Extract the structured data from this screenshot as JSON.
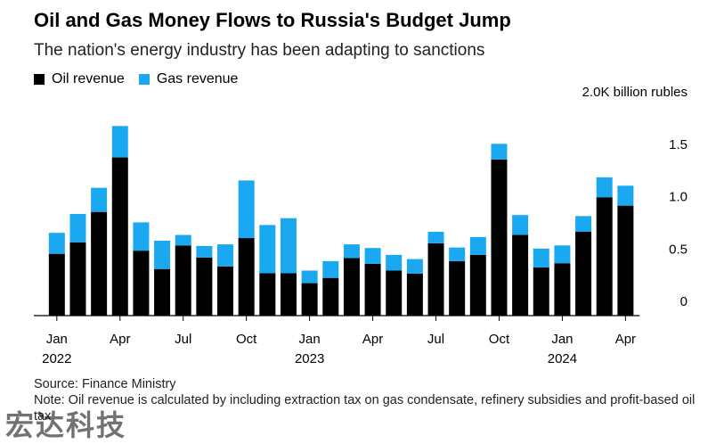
{
  "header": {
    "title": "Oil and Gas Money Flows to Russia's Budget Jump",
    "subtitle": "The nation's energy industry has been adapting to sanctions"
  },
  "footer": {
    "source": "Source: Finance Ministry",
    "note": "Note: Oil revenue is calculated by including extraction tax on gas condensate, refinery subsidies and profit-based oil tax"
  },
  "watermark": "宏达科技",
  "colors": {
    "oil": "#000000",
    "gas": "#1aa8f0",
    "axis": "#000000"
  },
  "chart_data": {
    "type": "bar",
    "stacked": true,
    "legend_position": "top-left",
    "grid": false,
    "ylim": [
      0,
      2000
    ],
    "y_unit_label": "2.0K billion rubles",
    "y_ticks": [
      {
        "value": 0,
        "label": "0"
      },
      {
        "value": 500,
        "label": "0.5"
      },
      {
        "value": 1000,
        "label": "1.0"
      },
      {
        "value": 1500,
        "label": "1.5"
      },
      {
        "value": 2000,
        "label": "2.0K billion rubles"
      }
    ],
    "categories": [
      "2022-01",
      "2022-02",
      "2022-03",
      "2022-04",
      "2022-05",
      "2022-06",
      "2022-07",
      "2022-08",
      "2022-09",
      "2022-10",
      "2022-11",
      "2022-12",
      "2023-01",
      "2023-02",
      "2023-03",
      "2023-04",
      "2023-05",
      "2023-06",
      "2023-07",
      "2023-08",
      "2023-09",
      "2023-10",
      "2023-11",
      "2023-12",
      "2024-01",
      "2024-02",
      "2024-03",
      "2024-04"
    ],
    "x_ticks": [
      {
        "index": 0,
        "label": "Jan",
        "sublabel": "2022"
      },
      {
        "index": 3,
        "label": "Apr",
        "sublabel": ""
      },
      {
        "index": 6,
        "label": "Jul",
        "sublabel": ""
      },
      {
        "index": 9,
        "label": "Oct",
        "sublabel": ""
      },
      {
        "index": 12,
        "label": "Jan",
        "sublabel": "2023"
      },
      {
        "index": 15,
        "label": "Apr",
        "sublabel": ""
      },
      {
        "index": 18,
        "label": "Jul",
        "sublabel": ""
      },
      {
        "index": 21,
        "label": "Oct",
        "sublabel": ""
      },
      {
        "index": 24,
        "label": "Jan",
        "sublabel": "2024"
      },
      {
        "index": 27,
        "label": "Apr",
        "sublabel": ""
      }
    ],
    "series": [
      {
        "name": "Oil revenue",
        "color": "#000000",
        "values": [
          590,
          700,
          990,
          1510,
          620,
          445,
          670,
          555,
          470,
          740,
          405,
          405,
          310,
          360,
          550,
          495,
          430,
          400,
          690,
          520,
          580,
          1490,
          770,
          460,
          500,
          800,
          1130,
          1050
        ]
      },
      {
        "name": "Gas revenue",
        "color": "#1aa8f0",
        "values": [
          200,
          270,
          230,
          300,
          270,
          270,
          100,
          110,
          210,
          550,
          460,
          525,
          120,
          160,
          130,
          150,
          150,
          140,
          110,
          130,
          170,
          150,
          190,
          180,
          170,
          150,
          190,
          190
        ]
      }
    ]
  }
}
